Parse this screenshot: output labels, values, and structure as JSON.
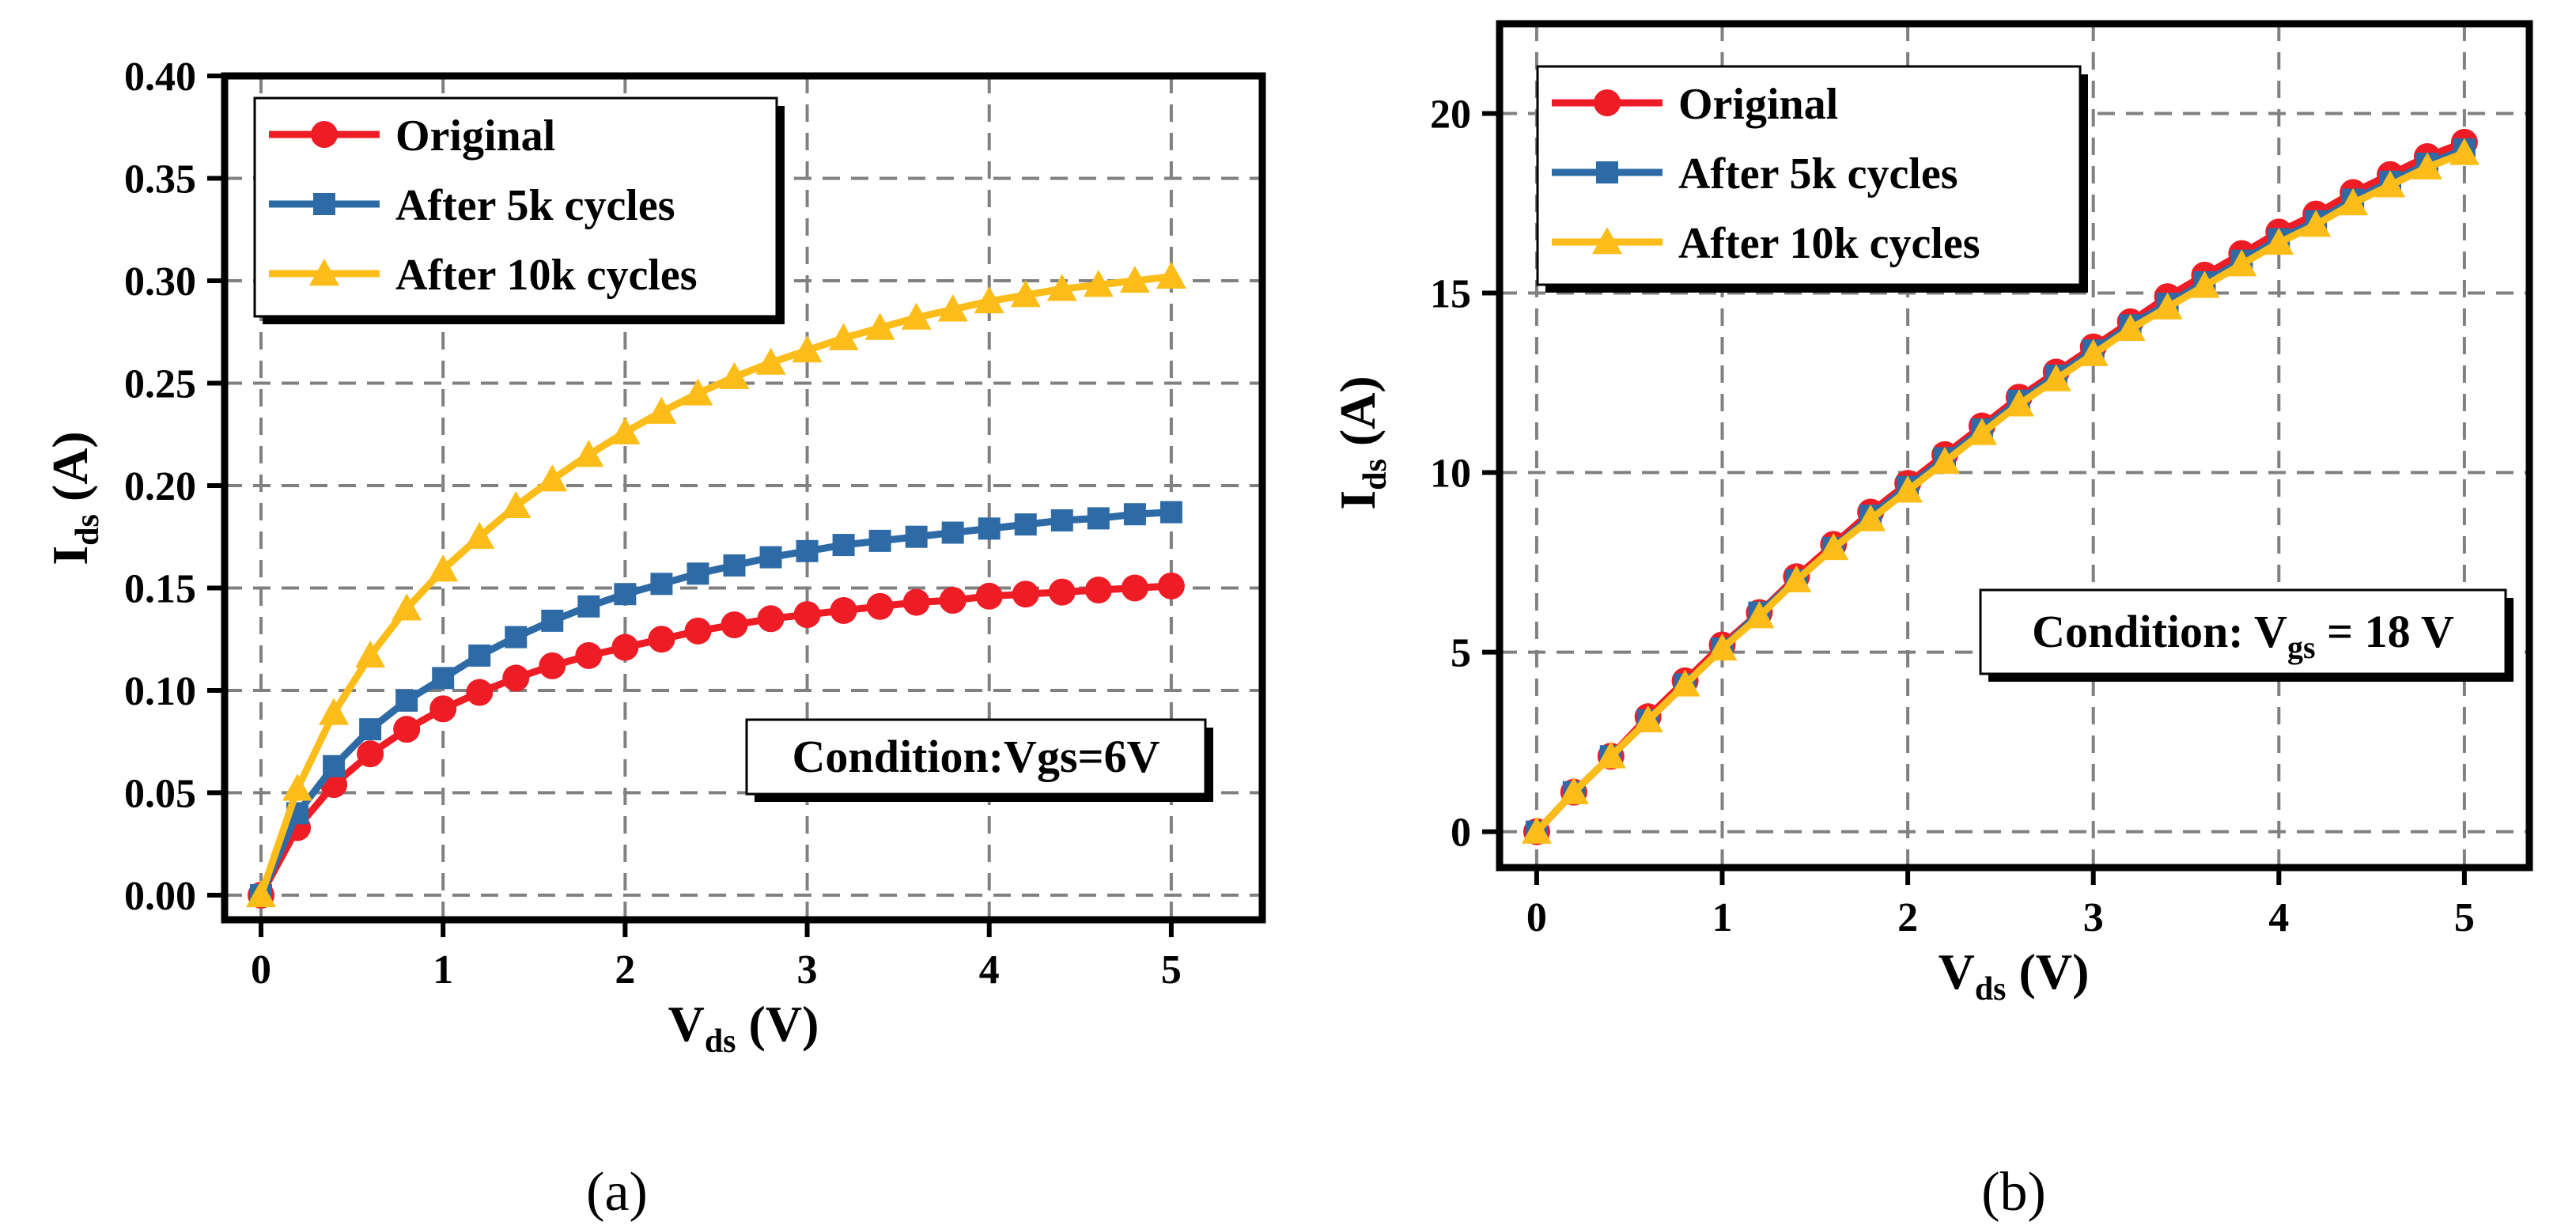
{
  "chart_data": [
    {
      "panel": "(a)",
      "type": "line",
      "xlabel": {
        "main": "V",
        "sub": "ds",
        "unit": " (V)"
      },
      "ylabel": {
        "main": "I",
        "sub": "ds",
        "unit": " (A)"
      },
      "xlim": [
        -0.2,
        5.5
      ],
      "ylim": [
        -0.012,
        0.4
      ],
      "xticks": [
        0,
        1,
        2,
        3,
        4,
        5
      ],
      "yticks": [
        0.0,
        0.05,
        0.1,
        0.15,
        0.2,
        0.25,
        0.3,
        0.35,
        0.4
      ],
      "xtick_labels": [
        "0",
        "1",
        "2",
        "3",
        "4",
        "5"
      ],
      "ytick_labels": [
        "0.00",
        "0.05",
        "0.10",
        "0.15",
        "0.20",
        "0.25",
        "0.30",
        "0.35",
        "0.40"
      ],
      "grid": true,
      "legend_position": "top-left",
      "annotation": "Condition:Vgs=6V",
      "x": [
        0,
        0.2,
        0.4,
        0.6,
        0.8,
        1.0,
        1.2,
        1.4,
        1.6,
        1.8,
        2.0,
        2.2,
        2.4,
        2.6,
        2.8,
        3.0,
        3.2,
        3.4,
        3.6,
        3.8,
        4.0,
        4.2,
        4.4,
        4.6,
        4.8,
        5.0
      ],
      "series": [
        {
          "name": "Original",
          "color": "#ee1c25",
          "marker": "circle",
          "values": [
            0.0,
            0.033,
            0.054,
            0.069,
            0.081,
            0.091,
            0.099,
            0.106,
            0.112,
            0.117,
            0.121,
            0.125,
            0.129,
            0.132,
            0.135,
            0.137,
            0.139,
            0.141,
            0.143,
            0.144,
            0.146,
            0.147,
            0.148,
            0.149,
            0.15,
            0.151
          ]
        },
        {
          "name": "After 5k cycles",
          "color": "#2e6ba6",
          "marker": "square",
          "values": [
            0.0,
            0.04,
            0.063,
            0.081,
            0.095,
            0.106,
            0.117,
            0.126,
            0.134,
            0.141,
            0.147,
            0.152,
            0.157,
            0.161,
            0.165,
            0.168,
            0.171,
            0.173,
            0.175,
            0.177,
            0.179,
            0.181,
            0.183,
            0.184,
            0.186,
            0.187
          ]
        },
        {
          "name": "After 10k cycles",
          "color": "#fcbd1a",
          "marker": "triangle",
          "values": [
            0.0,
            0.052,
            0.089,
            0.117,
            0.14,
            0.159,
            0.175,
            0.19,
            0.203,
            0.215,
            0.226,
            0.236,
            0.245,
            0.253,
            0.26,
            0.266,
            0.272,
            0.277,
            0.282,
            0.286,
            0.29,
            0.293,
            0.296,
            0.298,
            0.3,
            0.302
          ]
        }
      ]
    },
    {
      "panel": "(b)",
      "type": "line",
      "xlabel": {
        "main": "V",
        "sub": "ds",
        "unit": " (V)"
      },
      "ylabel": {
        "main": "I",
        "sub": "ds",
        "unit": " (A)"
      },
      "xlim": [
        -0.2,
        5.35
      ],
      "ylim": [
        -1.0,
        22.5
      ],
      "xticks": [
        0,
        1,
        2,
        3,
        4,
        5
      ],
      "yticks": [
        0,
        5,
        10,
        15,
        20
      ],
      "xtick_labels": [
        "0",
        "1",
        "2",
        "3",
        "4",
        "5"
      ],
      "ytick_labels": [
        "0",
        "5",
        "10",
        "15",
        "20"
      ],
      "grid": true,
      "legend_position": "top-left",
      "annotation": {
        "prefix": "Condition: V",
        "sub": "gs",
        "suffix": " = 18 V"
      },
      "x": [
        0,
        0.2,
        0.4,
        0.6,
        0.8,
        1.0,
        1.2,
        1.4,
        1.6,
        1.8,
        2.0,
        2.2,
        2.4,
        2.6,
        2.8,
        3.0,
        3.2,
        3.4,
        3.6,
        3.8,
        4.0,
        4.2,
        4.4,
        4.6,
        4.8,
        5.0
      ],
      "series": [
        {
          "name": "Original",
          "color": "#ee1c25",
          "marker": "circle",
          "values": [
            0.0,
            1.1,
            2.1,
            3.2,
            4.2,
            5.2,
            6.1,
            7.1,
            8.0,
            8.9,
            9.7,
            10.5,
            11.3,
            12.1,
            12.8,
            13.5,
            14.2,
            14.9,
            15.5,
            16.1,
            16.7,
            17.2,
            17.8,
            18.3,
            18.8,
            19.2
          ]
        },
        {
          "name": "After 5k cycles",
          "color": "#2e6ba6",
          "marker": "square",
          "values": [
            0.0,
            1.1,
            2.1,
            3.1,
            4.1,
            5.1,
            6.1,
            7.0,
            7.9,
            8.8,
            9.6,
            10.4,
            11.2,
            12.0,
            12.7,
            13.4,
            14.1,
            14.7,
            15.3,
            15.9,
            16.5,
            17.0,
            17.6,
            18.1,
            18.6,
            19.0
          ]
        },
        {
          "name": "After 10k cycles",
          "color": "#fcbd1a",
          "marker": "triangle",
          "values": [
            0.0,
            1.1,
            2.1,
            3.1,
            4.1,
            5.1,
            6.0,
            7.0,
            7.9,
            8.7,
            9.5,
            10.3,
            11.1,
            11.9,
            12.6,
            13.3,
            14.0,
            14.6,
            15.2,
            15.8,
            16.4,
            16.9,
            17.5,
            18.0,
            18.5,
            18.9
          ]
        }
      ]
    }
  ]
}
